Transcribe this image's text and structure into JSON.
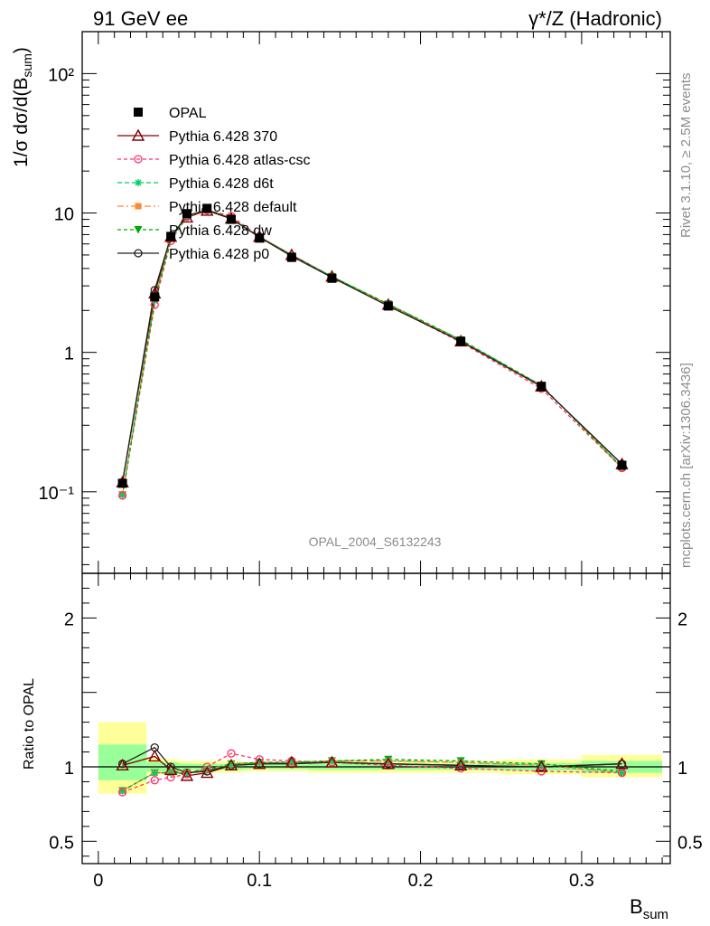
{
  "header": {
    "left": "91 GeV ee",
    "right": "γ*/Z (Hadronic)"
  },
  "side": {
    "rivet": "Rivet 3.1.10, ≥ 2.5M events",
    "mcplots": "mcplots.cern.ch [arXiv:1306.3436]"
  },
  "watermark": "OPAL_2004_S6132243",
  "axes": {
    "ylabel_top": "1/σ dσ/d(B",
    "ylabel_top_sub": "sum",
    "ylabel_top_close": ")",
    "ylabel_bottom": "Ratio to OPAL",
    "xlabel": "B",
    "xlabel_sub": "sum"
  },
  "chart_data": [
    {
      "type": "line",
      "panel": "main",
      "ylog": true,
      "xlim": [
        -0.01,
        0.355
      ],
      "ylim": [
        0.026,
        200
      ],
      "xticks": [
        "0",
        "0.1",
        "0.2",
        "0.3"
      ],
      "yticks": [
        "10⁻¹",
        "1",
        "10",
        "10²"
      ],
      "x": [
        0.015,
        0.035,
        0.045,
        0.055,
        0.0675,
        0.0825,
        0.1,
        0.12,
        0.145,
        0.18,
        0.225,
        0.275,
        0.325
      ],
      "series": [
        {
          "name": "OPAL",
          "color": "#000000",
          "marker": "square",
          "values": [
            0.115,
            2.5,
            6.8,
            9.9,
            10.8,
            9.0,
            6.6,
            4.8,
            3.4,
            2.15,
            1.2,
            0.57,
            0.155
          ]
        },
        {
          "name": "Pythia 6.428 370",
          "color": "#800000",
          "marker": "triangle-open",
          "values": [
            0.117,
            2.65,
            6.75,
            9.3,
            10.4,
            9.1,
            6.75,
            5.0,
            3.5,
            2.2,
            1.2,
            0.57,
            0.158
          ]
        },
        {
          "name": "Pythia 6.428 atlas-csc",
          "color": "#ff3366",
          "marker": "circle-open",
          "values": [
            0.094,
            2.2,
            6.3,
            9.4,
            10.5,
            9.5,
            6.8,
            4.9,
            3.45,
            2.18,
            1.18,
            0.55,
            0.148
          ]
        },
        {
          "name": "Pythia 6.428 d6t",
          "color": "#00cc66",
          "marker": "star",
          "values": [
            0.095,
            2.35,
            6.5,
            9.5,
            10.6,
            9.2,
            6.75,
            4.95,
            3.5,
            2.22,
            1.23,
            0.58,
            0.15
          ]
        },
        {
          "name": "Pythia 6.428 default",
          "color": "#ff8833",
          "marker": "square-filled",
          "values": [
            0.096,
            2.38,
            6.55,
            9.6,
            10.5,
            9.25,
            6.7,
            4.9,
            3.48,
            2.2,
            1.22,
            0.58,
            0.148
          ]
        },
        {
          "name": "Pythia 6.428 dw",
          "color": "#00aa00",
          "marker": "triangle-down-filled",
          "values": [
            0.095,
            2.37,
            6.5,
            9.5,
            10.55,
            9.2,
            6.72,
            4.92,
            3.5,
            2.22,
            1.23,
            0.58,
            0.15
          ]
        },
        {
          "name": "Pythia 6.428 p0",
          "color": "#222222",
          "marker": "circle-open",
          "values": [
            0.117,
            2.8,
            6.75,
            9.6,
            10.5,
            9.1,
            6.7,
            4.9,
            3.45,
            2.15,
            1.2,
            0.57,
            0.158
          ]
        }
      ]
    },
    {
      "type": "line",
      "panel": "ratio",
      "ylabel": "Ratio to OPAL",
      "xlim": [
        -0.01,
        0.355
      ],
      "ylim": [
        0.35,
        2.3
      ],
      "xticks": [
        "0",
        "0.1",
        "0.2",
        "0.3"
      ],
      "yticks": [
        "0.5",
        "1",
        "2"
      ],
      "bands": [
        {
          "x": [
            0.0,
            0.03
          ],
          "yellow": [
            0.82,
            1.3
          ],
          "green": [
            0.91,
            1.15
          ]
        },
        {
          "x": [
            0.03,
            0.04
          ],
          "yellow": [
            0.95,
            1.06
          ],
          "green": [
            0.97,
            1.03
          ]
        },
        {
          "x": [
            0.04,
            0.05
          ],
          "yellow": [
            0.95,
            1.05
          ],
          "green": [
            0.97,
            1.03
          ]
        },
        {
          "x": [
            0.05,
            0.06
          ],
          "yellow": [
            0.96,
            1.04
          ],
          "green": [
            0.98,
            1.02
          ]
        },
        {
          "x": [
            0.06,
            0.075
          ],
          "yellow": [
            0.96,
            1.04
          ],
          "green": [
            0.98,
            1.02
          ]
        },
        {
          "x": [
            0.075,
            0.09
          ],
          "yellow": [
            0.96,
            1.04
          ],
          "green": [
            0.98,
            1.02
          ]
        },
        {
          "x": [
            0.09,
            0.11
          ],
          "yellow": [
            0.97,
            1.03
          ],
          "green": [
            0.985,
            1.015
          ]
        },
        {
          "x": [
            0.11,
            0.13
          ],
          "yellow": [
            0.97,
            1.03
          ],
          "green": [
            0.985,
            1.015
          ]
        },
        {
          "x": [
            0.13,
            0.16
          ],
          "yellow": [
            0.96,
            1.04
          ],
          "green": [
            0.98,
            1.02
          ]
        },
        {
          "x": [
            0.16,
            0.2
          ],
          "yellow": [
            0.96,
            1.04
          ],
          "green": [
            0.98,
            1.02
          ]
        },
        {
          "x": [
            0.2,
            0.25
          ],
          "yellow": [
            0.96,
            1.04
          ],
          "green": [
            0.98,
            1.02
          ]
        },
        {
          "x": [
            0.25,
            0.3
          ],
          "yellow": [
            0.95,
            1.05
          ],
          "green": [
            0.975,
            1.025
          ]
        },
        {
          "x": [
            0.3,
            0.35
          ],
          "yellow": [
            0.93,
            1.08
          ],
          "green": [
            0.96,
            1.04
          ]
        }
      ],
      "x": [
        0.015,
        0.035,
        0.045,
        0.055,
        0.0675,
        0.0825,
        0.1,
        0.12,
        0.145,
        0.18,
        0.225,
        0.275,
        0.325
      ],
      "series": [
        {
          "name": "Pythia 6.428 370",
          "color": "#800000",
          "marker": "triangle-open",
          "values": [
            1.01,
            1.07,
            0.98,
            0.94,
            0.96,
            1.01,
            1.02,
            1.03,
            1.03,
            1.02,
            1.01,
            1.0,
            1.02
          ]
        },
        {
          "name": "Pythia 6.428 atlas-csc",
          "color": "#ff3366",
          "marker": "circle-open",
          "values": [
            0.83,
            0.91,
            0.93,
            0.95,
            1.0,
            1.09,
            1.05,
            1.04,
            1.03,
            1.01,
            0.99,
            0.97,
            0.96
          ]
        },
        {
          "name": "Pythia 6.428 d6t",
          "color": "#00cc66",
          "marker": "star",
          "values": [
            0.84,
            0.96,
            0.96,
            0.96,
            0.98,
            1.02,
            1.03,
            1.03,
            1.04,
            1.04,
            1.03,
            1.01,
            0.96
          ]
        },
        {
          "name": "Pythia 6.428 default",
          "color": "#ff8833",
          "marker": "square-filled",
          "values": [
            0.84,
            0.96,
            0.96,
            0.96,
            0.98,
            1.02,
            1.03,
            1.03,
            1.04,
            1.04,
            1.03,
            1.01,
            0.96
          ]
        },
        {
          "name": "Pythia 6.428 dw",
          "color": "#00aa00",
          "marker": "triangle-down-filled",
          "values": [
            0.84,
            0.96,
            0.96,
            0.96,
            0.98,
            1.02,
            1.03,
            1.03,
            1.04,
            1.05,
            1.04,
            1.02,
            0.97
          ]
        },
        {
          "name": "Pythia 6.428 p0",
          "color": "#222222",
          "marker": "circle-open",
          "values": [
            1.02,
            1.13,
            1.0,
            0.96,
            0.97,
            1.01,
            1.02,
            1.02,
            1.03,
            1.02,
            1.01,
            1.0,
            1.02
          ]
        }
      ]
    }
  ]
}
